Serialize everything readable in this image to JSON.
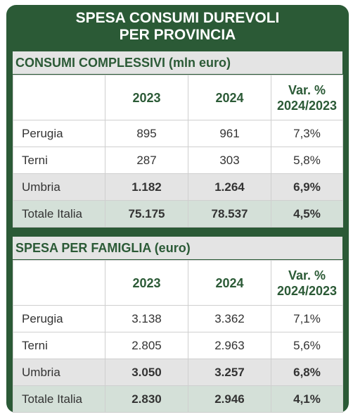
{
  "title_line1": "SPESA CONSUMI DUREVOLI",
  "title_line2": "PER PROVINCIA",
  "sections": [
    {
      "heading": "CONSUMI COMPLESSIVI (mln euro)",
      "columns": [
        "",
        "2023",
        "2024",
        "Var. %",
        "2024/2023"
      ],
      "rows": [
        {
          "label": "Perugia",
          "v2023": "895",
          "v2024": "961",
          "var": "7,3%"
        },
        {
          "label": "Terni",
          "v2023": "287",
          "v2024": "303",
          "var": "5,8%"
        },
        {
          "label": "Umbria",
          "v2023": "1.182",
          "v2024": "1.264",
          "var": "6,9%"
        },
        {
          "label": "Totale Italia",
          "v2023": "75.175",
          "v2024": "78.537",
          "var": "4,5%"
        }
      ]
    },
    {
      "heading": "SPESA PER FAMIGLIA (euro)",
      "columns": [
        "",
        "2023",
        "2024",
        "Var. %",
        "2024/2023"
      ],
      "rows": [
        {
          "label": "Perugia",
          "v2023": "3.138",
          "v2024": "3.362",
          "var": "7,1%"
        },
        {
          "label": "Terni",
          "v2023": "2.805",
          "v2024": "2.963",
          "var": "5,6%"
        },
        {
          "label": "Umbria",
          "v2023": "3.050",
          "v2024": "3.257",
          "var": "6,8%"
        },
        {
          "label": "Totale Italia",
          "v2023": "2.830",
          "v2024": "2.946",
          "var": "4,1%"
        }
      ]
    }
  ],
  "colors": {
    "primary_green": "#2b5a36",
    "gray_row": "#e4e4e4",
    "green_row": "#d4e0d8"
  }
}
